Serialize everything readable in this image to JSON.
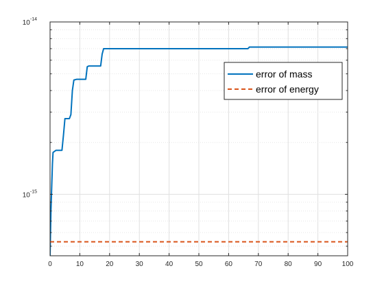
{
  "chart_data": {
    "type": "line",
    "title": "",
    "xlabel": "",
    "ylabel": "",
    "xlim": [
      0,
      100
    ],
    "ylim": [
      4.4e-16,
      1e-14
    ],
    "yscale": "log",
    "grid": true,
    "minor_grid": true,
    "legend_position": "top-right",
    "x_ticks": [
      0,
      10,
      20,
      30,
      40,
      50,
      60,
      70,
      80,
      90,
      100
    ],
    "x_tick_labels": [
      "0",
      "10",
      "20",
      "30",
      "40",
      "50",
      "60",
      "70",
      "80",
      "90",
      "100"
    ],
    "y_tick_labels": [
      {
        "value": 1e-15,
        "base": "10",
        "exp": "-15"
      },
      {
        "value": 1e-14,
        "base": "10",
        "exp": "-14"
      }
    ],
    "series": [
      {
        "name": "error of mass",
        "color": "#0072BD",
        "style": "solid",
        "x": [
          0,
          0.3,
          0.8,
          1,
          2,
          3,
          4,
          4.5,
          5,
          6,
          6.5,
          7,
          7.5,
          8,
          9,
          10,
          11,
          12,
          12.5,
          13,
          14,
          15,
          16,
          17,
          17.5,
          18,
          20,
          30,
          40,
          50,
          60,
          66,
          66.5,
          67,
          70,
          80,
          90,
          100
        ],
        "y": [
          4.4e-16,
          8e-16,
          1.5e-15,
          1.75e-15,
          1.8e-15,
          1.8e-15,
          1.8e-15,
          2.2e-15,
          2.75e-15,
          2.75e-15,
          2.75e-15,
          2.9e-15,
          4e-15,
          4.6e-15,
          4.65e-15,
          4.65e-15,
          4.65e-15,
          4.65e-15,
          5.5e-15,
          5.55e-15,
          5.55e-15,
          5.55e-15,
          5.55e-15,
          5.55e-15,
          6.5e-15,
          7e-15,
          7e-15,
          7e-15,
          7e-15,
          7e-15,
          7e-15,
          7e-15,
          7e-15,
          7.15e-15,
          7.15e-15,
          7.15e-15,
          7.15e-15,
          7.15e-15
        ]
      },
      {
        "name": "error of energy",
        "color": "#D95319",
        "style": "dashed",
        "x": [
          0,
          100
        ],
        "y": [
          5.3e-16,
          5.3e-16
        ]
      }
    ]
  }
}
